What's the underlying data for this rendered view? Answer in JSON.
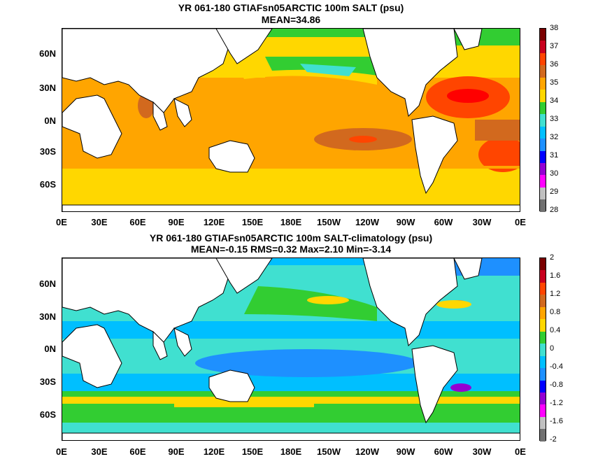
{
  "map1": {
    "title_line1": "YR 061-180 GTIAFsn05ARCTIC 100m SALT (psu)",
    "title_line2": "MEAN=34.86",
    "ylabels": [
      "60N",
      "30N",
      "0N",
      "30S",
      "60S"
    ],
    "xlabels": [
      "0E",
      "30E",
      "60E",
      "90E",
      "120E",
      "150E",
      "180E",
      "150W",
      "120W",
      "90W",
      "60W",
      "30W",
      "0E"
    ],
    "colorbar": {
      "labels": [
        "38",
        "37",
        "36",
        "35",
        "34",
        "33",
        "32",
        "31",
        "30",
        "29",
        "28"
      ],
      "colors": [
        "#7a0000",
        "#c8001e",
        "#ff4500",
        "#d2691e",
        "#ffa500",
        "#ffd700",
        "#32cd32",
        "#40e0d0",
        "#00bfff",
        "#1e90ff",
        "#0000ff",
        "#9400d3",
        "#ff00ff",
        "#c0c0c0",
        "#707070"
      ]
    }
  },
  "map2": {
    "title_line1": "YR 061-180 GTIAFsn05ARCTIC 100m SALT-climatology (psu)",
    "title_line2": "MEAN=-0.15   RMS=0.32   Max=2.10   Min=-3.14",
    "ylabels": [
      "60N",
      "30N",
      "0N",
      "30S",
      "60S"
    ],
    "xlabels": [
      "0E",
      "30E",
      "60E",
      "90E",
      "120E",
      "150E",
      "180E",
      "150W",
      "120W",
      "90W",
      "60W",
      "30W",
      "0E"
    ],
    "colorbar": {
      "labels": [
        "2",
        "1.6",
        "1.2",
        "0.8",
        "0.4",
        "0",
        "-0.4",
        "-0.8",
        "-1.2",
        "-1.6",
        "-2"
      ],
      "colors": [
        "#7a0000",
        "#c8001e",
        "#ff4500",
        "#d2691e",
        "#ffa500",
        "#ffd700",
        "#32cd32",
        "#40e0d0",
        "#00bfff",
        "#1e90ff",
        "#0000ff",
        "#9400d3",
        "#ff00ff",
        "#c0c0c0",
        "#707070"
      ]
    }
  },
  "colors": {
    "land": "#ffffff",
    "coast": "#000000"
  }
}
